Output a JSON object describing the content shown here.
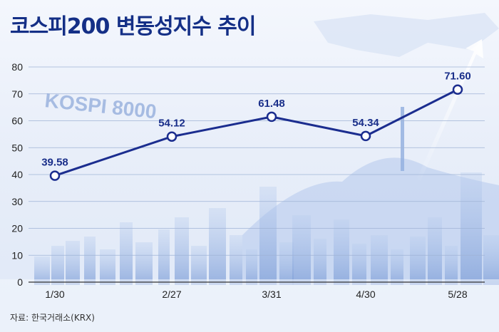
{
  "title": "코스피200 변동성지수 추이",
  "source": "자료: 한국거래소(KRX)",
  "background_text": "KOSPI 8000",
  "colors": {
    "line": "#1b2d8f",
    "title": "#142f86",
    "marker_fill": "#ffffff"
  },
  "chart_data": {
    "type": "line",
    "categories": [
      "1/30",
      "2/27",
      "3/31",
      "4/30",
      "5/28"
    ],
    "values": [
      39.58,
      54.12,
      61.48,
      54.34,
      71.6
    ],
    "data_labels": [
      "39.58",
      "54.12",
      "61.48",
      "54.34",
      "71.60"
    ],
    "ylim": [
      0,
      80
    ],
    "yticks": [
      0,
      10,
      20,
      30,
      40,
      50,
      60,
      70,
      80
    ],
    "grid": true,
    "title": "",
    "xlabel": "",
    "ylabel": ""
  }
}
